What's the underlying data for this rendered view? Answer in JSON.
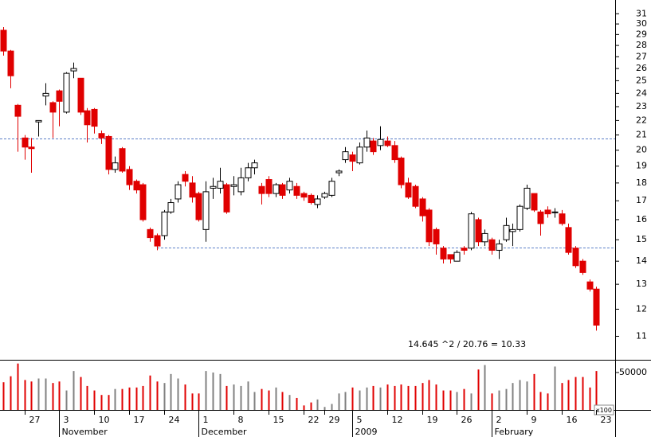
{
  "chart_data": {
    "type": "candlestick",
    "log_scale": true,
    "ylim": [
      10.2,
      32.4
    ],
    "yticks": [
      11,
      12,
      13,
      14,
      15,
      16,
      17,
      18,
      19,
      20,
      21,
      22,
      23,
      24,
      25,
      26,
      27,
      28,
      29,
      30,
      31
    ],
    "xlim": [
      -0.5,
      87.7
    ],
    "xticks": [
      {
        "value": 3,
        "label": "27"
      },
      {
        "value": 8,
        "label": "3"
      },
      {
        "value": 13,
        "label": "10"
      },
      {
        "value": 18,
        "label": "17"
      },
      {
        "value": 23,
        "label": "24"
      },
      {
        "value": 28,
        "label": "1"
      },
      {
        "value": 33,
        "label": "8"
      },
      {
        "value": 38,
        "label": "15"
      },
      {
        "value": 43,
        "label": "22"
      },
      {
        "value": 46,
        "label": "29"
      },
      {
        "value": 50,
        "label": "5"
      },
      {
        "value": 55,
        "label": "12"
      },
      {
        "value": 60,
        "label": "19"
      },
      {
        "value": 65,
        "label": "26"
      },
      {
        "value": 70,
        "label": "2"
      },
      {
        "value": 75,
        "label": "9"
      },
      {
        "value": 80,
        "label": "16"
      },
      {
        "value": 85,
        "label": "23"
      }
    ],
    "month_ticks": [
      {
        "value": 8,
        "label": "November"
      },
      {
        "value": 28,
        "label": "December"
      },
      {
        "value": 50,
        "label": "2009"
      },
      {
        "value": 70,
        "label": "February"
      }
    ],
    "open": [
      29.4,
      27.5,
      23.1,
      20.8,
      20.2,
      21.9,
      23.8,
      23.3,
      24.2,
      22.6,
      25.8,
      25.2,
      22.7,
      22.8,
      21.1,
      20.9,
      18.8,
      20.1,
      18.8,
      18.1,
      17.9,
      15.5,
      15.2,
      15.2,
      16.4,
      17.1,
      18.5,
      18.0,
      17.4,
      15.5,
      17.7,
      17.7,
      17.9,
      17.8,
      17.5,
      18.3,
      18.9,
      17.8,
      18.2,
      17.4,
      17.9,
      17.6,
      17.8,
      17.4,
      17.3,
      16.8,
      17.2,
      17.3,
      18.6,
      19.4,
      19.7,
      19.2,
      20.2,
      20.6,
      20.3,
      20.6,
      20.3,
      19.5,
      18.0,
      17.8,
      17.1,
      16.5,
      15.5,
      14.6,
      14.3,
      14.0,
      14.6,
      14.6,
      16.0,
      14.9,
      15.0,
      14.5,
      15.0,
      15.4,
      15.5,
      16.6,
      17.4,
      16.4,
      16.5,
      16.4,
      16.3,
      15.6,
      14.6,
      14.0,
      13.1,
      12.8
    ],
    "high": [
      29.7,
      27.6,
      23.2,
      21.0,
      20.8,
      22.0,
      24.8,
      23.4,
      24.3,
      25.7,
      26.5,
      25.2,
      22.9,
      22.9,
      21.3,
      21.0,
      19.6,
      20.2,
      19.0,
      18.2,
      18.0,
      15.6,
      15.3,
      16.5,
      17.1,
      18.1,
      18.7,
      18.4,
      17.5,
      18.1,
      18.3,
      18.9,
      18.0,
      18.4,
      18.9,
      19.2,
      19.4,
      18.0,
      18.4,
      18.0,
      18.0,
      18.3,
      18.0,
      17.5,
      17.4,
      17.3,
      17.5,
      18.3,
      18.8,
      20.2,
      19.9,
      20.5,
      21.3,
      20.8,
      21.6,
      20.9,
      20.6,
      19.6,
      18.3,
      17.9,
      17.2,
      16.6,
      15.6,
      14.7,
      14.3,
      14.5,
      14.7,
      16.4,
      16.1,
      15.5,
      15.1,
      15.0,
      16.1,
      15.8,
      16.8,
      17.9,
      17.4,
      16.5,
      16.7,
      16.6,
      16.5,
      15.8,
      14.7,
      14.1,
      13.2,
      12.9
    ],
    "low": [
      27.1,
      24.4,
      19.9,
      19.4,
      18.6,
      20.9,
      23.1,
      20.8,
      21.6,
      22.5,
      25.2,
      22.4,
      20.5,
      21.1,
      20.4,
      18.5,
      18.6,
      18.6,
      17.6,
      17.4,
      15.9,
      14.9,
      14.5,
      15.0,
      16.3,
      16.9,
      17.8,
      16.9,
      15.9,
      14.9,
      17.1,
      17.4,
      16.3,
      17.3,
      17.3,
      18.1,
      18.5,
      16.8,
      17.2,
      17.2,
      17.1,
      17.4,
      17.1,
      17.0,
      16.8,
      16.6,
      17.1,
      17.2,
      18.4,
      19.2,
      18.7,
      19.1,
      19.9,
      19.7,
      20.0,
      20.2,
      19.2,
      17.7,
      17.1,
      16.6,
      15.9,
      14.7,
      14.3,
      13.9,
      13.9,
      14.0,
      14.3,
      14.5,
      14.7,
      14.7,
      14.3,
      14.1,
      14.9,
      14.7,
      15.4,
      16.5,
      16.4,
      15.2,
      16.1,
      16.1,
      15.7,
      14.3,
      13.7,
      13.4,
      12.7,
      11.2
    ],
    "close": [
      27.5,
      25.4,
      22.3,
      20.2,
      20.1,
      22.0,
      24.0,
      22.6,
      23.4,
      25.6,
      26.0,
      22.6,
      21.7,
      21.6,
      20.8,
      18.8,
      19.2,
      18.7,
      17.9,
      17.6,
      16.0,
      15.1,
      14.7,
      16.4,
      16.9,
      17.9,
      18.1,
      17.2,
      16.0,
      17.5,
      17.8,
      18.1,
      16.4,
      17.9,
      18.3,
      18.9,
      19.2,
      17.4,
      17.4,
      17.9,
      17.3,
      18.1,
      17.3,
      17.2,
      16.9,
      17.1,
      17.4,
      18.1,
      18.7,
      19.9,
      19.3,
      20.2,
      20.8,
      19.9,
      20.7,
      20.3,
      19.4,
      17.9,
      17.2,
      16.7,
      16.2,
      14.9,
      14.8,
      14.1,
      14.1,
      14.4,
      14.5,
      16.3,
      14.9,
      15.3,
      14.5,
      14.8,
      15.7,
      15.5,
      16.7,
      17.7,
      16.5,
      15.8,
      16.3,
      16.4,
      15.8,
      14.4,
      13.8,
      13.5,
      12.8,
      11.4
    ],
    "volume": [
      37000,
      45000,
      62000,
      40000,
      38000,
      42000,
      42000,
      36000,
      38000,
      26000,
      52000,
      44000,
      32000,
      26000,
      20000,
      20000,
      28000,
      28000,
      30000,
      30000,
      32000,
      46000,
      38000,
      36000,
      48000,
      42000,
      34000,
      22000,
      22000,
      52000,
      50000,
      48000,
      32000,
      34000,
      32000,
      38000,
      24000,
      28000,
      26000,
      30000,
      24000,
      20000,
      16000,
      6000,
      10000,
      14000,
      4000,
      8000,
      22000,
      24000,
      30000,
      26000,
      30000,
      32000,
      30000,
      34000,
      32000,
      34000,
      32000,
      32000,
      36000,
      40000,
      34000,
      26000,
      26000,
      24000,
      28000,
      22000,
      54000,
      60000,
      22000,
      26000,
      28000,
      36000,
      40000,
      38000,
      48000,
      24000,
      22000,
      58000,
      36000,
      40000,
      44000,
      44000,
      30000,
      52000
    ],
    "volume_ylim": [
      0,
      67000
    ],
    "volume_yticks": [
      50000
    ],
    "volume_unit": "x100",
    "up_color": "#ffffff",
    "down_color": "#e00000",
    "volume_up_color": "#808080",
    "hlines": [
      {
        "value": 20.76
      },
      {
        "value": 14.645,
        "start": 22
      }
    ],
    "annotation": "14.645 ^2 / 20.76 = 10.33"
  }
}
